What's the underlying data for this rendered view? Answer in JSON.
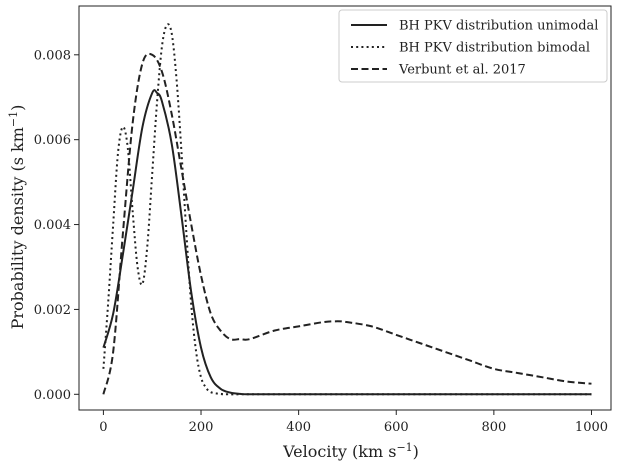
{
  "chart_data": {
    "type": "line",
    "xlabel": "Velocity (km s",
    "xlabel_sup": "−1",
    "xlabel_tail": ")",
    "ylabel": "Probability density (s km",
    "ylabel_sup": "−1",
    "ylabel_tail": ")",
    "xlim": [
      -50,
      1040
    ],
    "ylim": [
      -0.00037,
      0.00915
    ],
    "xticks": [
      0,
      200,
      400,
      600,
      800,
      1000
    ],
    "xtick_labels": [
      "0",
      "200",
      "400",
      "600",
      "800",
      "1000"
    ],
    "yticks": [
      0,
      0.002,
      0.004,
      0.006,
      0.008
    ],
    "ytick_labels": [
      "0.000",
      "0.002",
      "0.004",
      "0.006",
      "0.008"
    ],
    "grid": false,
    "legend_position": "top-right",
    "series": [
      {
        "name": "BH PKV distribution unimodal",
        "style": "solid",
        "x": [
          0,
          20,
          40,
          60,
          80,
          100,
          110,
          120,
          140,
          160,
          180,
          200,
          220,
          240,
          260,
          280,
          300,
          400,
          600,
          800,
          1000
        ],
        "y": [
          0.0011,
          0.0019,
          0.0033,
          0.0048,
          0.0063,
          0.0071,
          0.0071,
          0.0069,
          0.0059,
          0.0042,
          0.0024,
          0.0011,
          0.0004,
          0.00013,
          4e-05,
          1e-05,
          0.0,
          0.0,
          0.0,
          0.0,
          0.0
        ]
      },
      {
        "name": "BH PKV distribution bimodal",
        "style": "dotted",
        "x": [
          0,
          10,
          20,
          30,
          40,
          50,
          60,
          70,
          80,
          90,
          100,
          110,
          120,
          130,
          140,
          150,
          160,
          170,
          180,
          190,
          200,
          210,
          220,
          240,
          260,
          280,
          300,
          1000
        ],
        "y": [
          0.0006,
          0.0022,
          0.004,
          0.0057,
          0.0063,
          0.0058,
          0.0043,
          0.003,
          0.0026,
          0.0035,
          0.0052,
          0.0069,
          0.0082,
          0.0087,
          0.0085,
          0.0074,
          0.0057,
          0.0038,
          0.0021,
          0.001,
          0.0004,
          0.00016,
          5e-05,
          1e-05,
          0.0,
          0.0,
          0.0,
          0.0
        ]
      },
      {
        "name": "Verbunt et al. 2017",
        "style": "dashed",
        "x": [
          0,
          20,
          40,
          60,
          80,
          100,
          120,
          140,
          160,
          180,
          200,
          220,
          240,
          260,
          280,
          300,
          350,
          400,
          450,
          480,
          500,
          550,
          600,
          650,
          700,
          750,
          800,
          850,
          900,
          950,
          1000
        ],
        "y": [
          0.0,
          0.001,
          0.0038,
          0.0064,
          0.0078,
          0.008,
          0.0076,
          0.0066,
          0.0053,
          0.004,
          0.0028,
          0.0019,
          0.0015,
          0.0013,
          0.0013,
          0.0013,
          0.0015,
          0.0016,
          0.0017,
          0.00172,
          0.0017,
          0.0016,
          0.0014,
          0.0012,
          0.001,
          0.0008,
          0.0006,
          0.0005,
          0.0004,
          0.0003,
          0.00025
        ]
      }
    ]
  }
}
